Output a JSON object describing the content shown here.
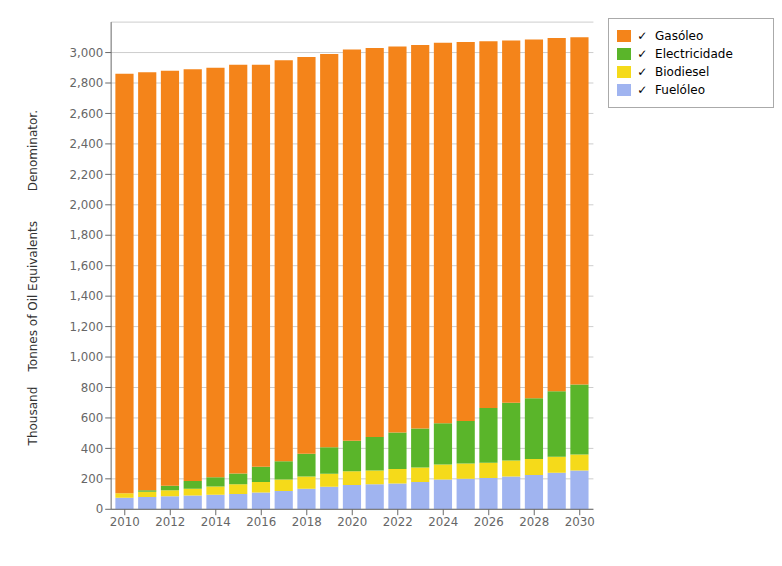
{
  "chart_data": {
    "type": "bar",
    "stacked": true,
    "grid": true,
    "legend": "right",
    "y_label": "Thousand    Tonnes of Oil Equivalents",
    "annotations": [
      "Denominator."
    ],
    "x": [
      2010,
      2011,
      2012,
      2013,
      2014,
      2015,
      2016,
      2017,
      2018,
      2019,
      2020,
      2021,
      2022,
      2023,
      2024,
      2025,
      2026,
      2027,
      2028,
      2029,
      2030
    ],
    "xlim": [
      2009.4,
      2030.6
    ],
    "xticks": [
      2010,
      2012,
      2014,
      2016,
      2018,
      2020,
      2022,
      2024,
      2026,
      2028,
      2030
    ],
    "ylim": [
      0,
      3200
    ],
    "yticks": [
      0,
      200,
      400,
      600,
      800,
      {
        "value": 1000,
        "label": "1,000"
      },
      {
        "value": 1200,
        "label": "1,200"
      },
      {
        "value": 1400,
        "label": "1,400"
      },
      {
        "value": 1600,
        "label": "1,600"
      },
      {
        "value": 1800,
        "label": "1,800"
      },
      {
        "value": 2000,
        "label": "2,000"
      },
      {
        "value": 2200,
        "label": "2,200"
      },
      {
        "value": 2400,
        "label": "2,400"
      },
      {
        "value": 2600,
        "label": "2,600"
      },
      {
        "value": 2800,
        "label": "2,800"
      },
      {
        "value": 3000,
        "label": "3,000"
      }
    ],
    "series": [
      {
        "name": "✓  Fuelóleo",
        "color": "#A0B4F0",
        "values": [
          75,
          80,
          85,
          90,
          95,
          100,
          110,
          120,
          135,
          148,
          160,
          165,
          170,
          180,
          195,
          200,
          205,
          215,
          225,
          240,
          255
        ]
      },
      {
        "name": "✓  Biodiesel",
        "color": "#F5DA1A",
        "values": [
          30,
          35,
          40,
          45,
          55,
          65,
          70,
          75,
          80,
          85,
          90,
          90,
          95,
          95,
          100,
          100,
          100,
          105,
          105,
          105,
          105
        ]
      },
      {
        "name": "✓  Electricidade",
        "color": "#5AB52A",
        "values": [
          0,
          10,
          30,
          50,
          60,
          70,
          100,
          120,
          150,
          175,
          200,
          220,
          240,
          255,
          270,
          280,
          360,
          380,
          400,
          430,
          460
        ]
      },
      {
        "name": "✓  Gasóleo",
        "color": "#F4841A",
        "values": [
          2755,
          2745,
          2725,
          2705,
          2690,
          2685,
          2640,
          2635,
          2605,
          2582,
          2570,
          2555,
          2535,
          2520,
          2500,
          2490,
          2410,
          2380,
          2355,
          2320,
          2280
        ]
      }
    ]
  }
}
